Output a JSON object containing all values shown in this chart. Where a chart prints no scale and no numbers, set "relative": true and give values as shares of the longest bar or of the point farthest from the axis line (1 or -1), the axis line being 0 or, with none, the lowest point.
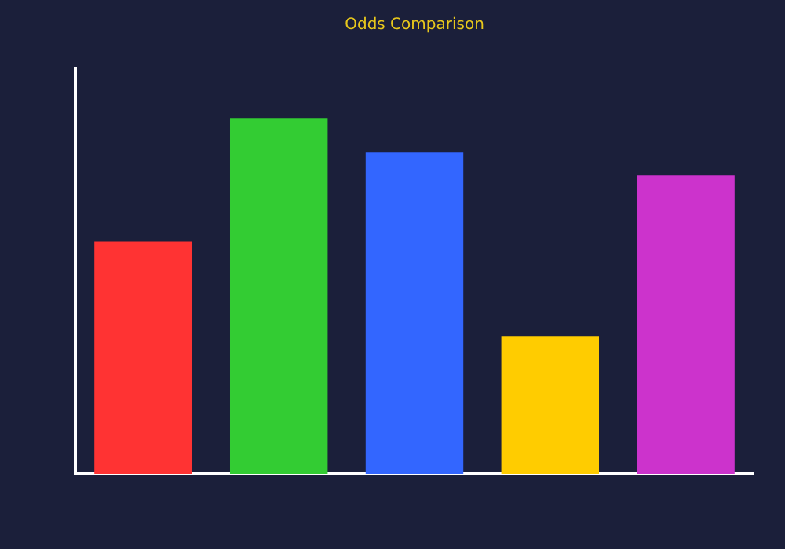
{
  "chart_data": {
    "type": "bar",
    "title": "Odds Comparison",
    "relative": true,
    "categories": [
      null,
      null,
      null,
      null,
      null
    ],
    "values": [
      0.655,
      1,
      0.905,
      0.386,
      0.841
    ],
    "colors": [
      "#ff3333",
      "#33cc33",
      "#3366ff",
      "#ffcc00",
      "#cc33cc"
    ],
    "grid": false,
    "legend": false
  }
}
